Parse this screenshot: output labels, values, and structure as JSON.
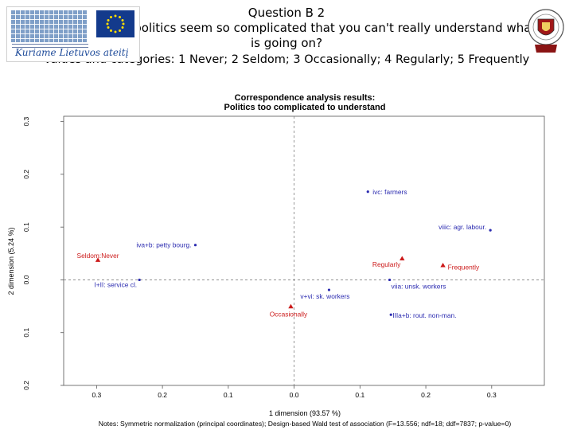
{
  "header": {
    "question_number": "Question B 2",
    "question_text": "How often does politics seem so complicated that you can't really understand what is going on?",
    "values_line": "Values and categories: 1 Never; 2 Seldom; 3 Occasionally; 4 Regularly; 5 Frequently"
  },
  "logos": {
    "left_slogan": "Kuriame Lietuvos ateitį",
    "left_icon": "eu-structural-funds-logo",
    "right_icon": "university-crest-icon"
  },
  "colors": {
    "row_points": "#2b2bb0",
    "column_points": "#cc1a1a",
    "reference_lines": "#808080"
  },
  "chart_data": {
    "type": "scatter",
    "title": "Correspondence analysis results:",
    "subtitle": "Politics too complicated to understand",
    "xlabel": "1 dimension (93.57 %)",
    "ylabel": "2 dimension (5.24 %)",
    "xlim": [
      -0.35,
      0.38
    ],
    "ylim": [
      -0.2,
      0.31
    ],
    "xticks": [
      -0.3,
      -0.2,
      -0.1,
      0.0,
      0.1,
      0.2,
      0.3
    ],
    "xtick_labels": [
      "0.3",
      "0.2",
      "0.1",
      "0.0",
      "0.1",
      "0.2",
      "0.3"
    ],
    "yticks": [
      -0.2,
      -0.1,
      0.0,
      0.1,
      0.2,
      0.3
    ],
    "ytick_labels": [
      "0.2",
      "0.1",
      "0.0",
      "0.1",
      "0.2",
      "0.3"
    ],
    "reference_lines": {
      "x": 0,
      "y": 0
    },
    "grid": false,
    "legend": "none",
    "note": "Notes: Symmetric normalization (principal coordinates); Design-based Wald test of association (F=13.556; ndf=18; ddf=7837; p-value=0)",
    "series": [
      {
        "marker": "circle",
        "color": "#2b2bb0",
        "points": [
          {
            "label": "ivc: farmers",
            "x": 0.112,
            "y": 0.167
          },
          {
            "label": "viiic: agr. labour.",
            "x": 0.298,
            "y": 0.094
          },
          {
            "label": "iva+b: petty bourg.",
            "x": -0.15,
            "y": 0.066
          },
          {
            "label": "I+II: service cl.",
            "x": -0.235,
            "y": 0.0
          },
          {
            "label": "v+vi: sk. workers",
            "x": 0.053,
            "y": -0.019
          },
          {
            "label": "viia: unsk. workers",
            "x": 0.145,
            "y": 0.0
          },
          {
            "label": "IIIa+b: rout. non-man.",
            "x": 0.147,
            "y": -0.066
          }
        ]
      },
      {
        "marker": "triangle",
        "color": "#cc1a1a",
        "points": [
          {
            "label": "Seldom:Never",
            "x": -0.298,
            "y": 0.037
          },
          {
            "label": "Regularly",
            "x": 0.164,
            "y": 0.04
          },
          {
            "label": "Frequently",
            "x": 0.226,
            "y": 0.027
          },
          {
            "label": "Occasionally",
            "x": -0.005,
            "y": -0.051
          }
        ]
      }
    ]
  }
}
